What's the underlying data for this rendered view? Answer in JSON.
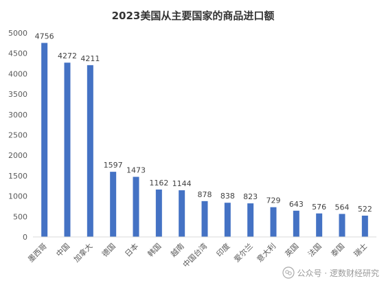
{
  "chart_data": {
    "type": "bar",
    "title": "2023美国从主要国家的商品进口额",
    "categories": [
      "墨西哥",
      "中国",
      "加拿大",
      "德国",
      "日本",
      "韩国",
      "越南",
      "中国台湾",
      "印度",
      "爱尔兰",
      "意大利",
      "英国",
      "法国",
      "泰国",
      "瑞士"
    ],
    "values": [
      4756,
      4272,
      4211,
      1597,
      1473,
      1162,
      1144,
      878,
      838,
      823,
      729,
      643,
      576,
      564,
      522
    ],
    "ylim": [
      0,
      5000
    ],
    "yticks": [
      0,
      500,
      1000,
      1500,
      2000,
      2500,
      3000,
      3500,
      4000,
      4500,
      5000
    ],
    "grid": false,
    "legend": "none",
    "bar_color": "#4472C4"
  },
  "watermark": {
    "text": "公众号 · 逻数财经研究",
    "icon": "wechat-icon"
  }
}
